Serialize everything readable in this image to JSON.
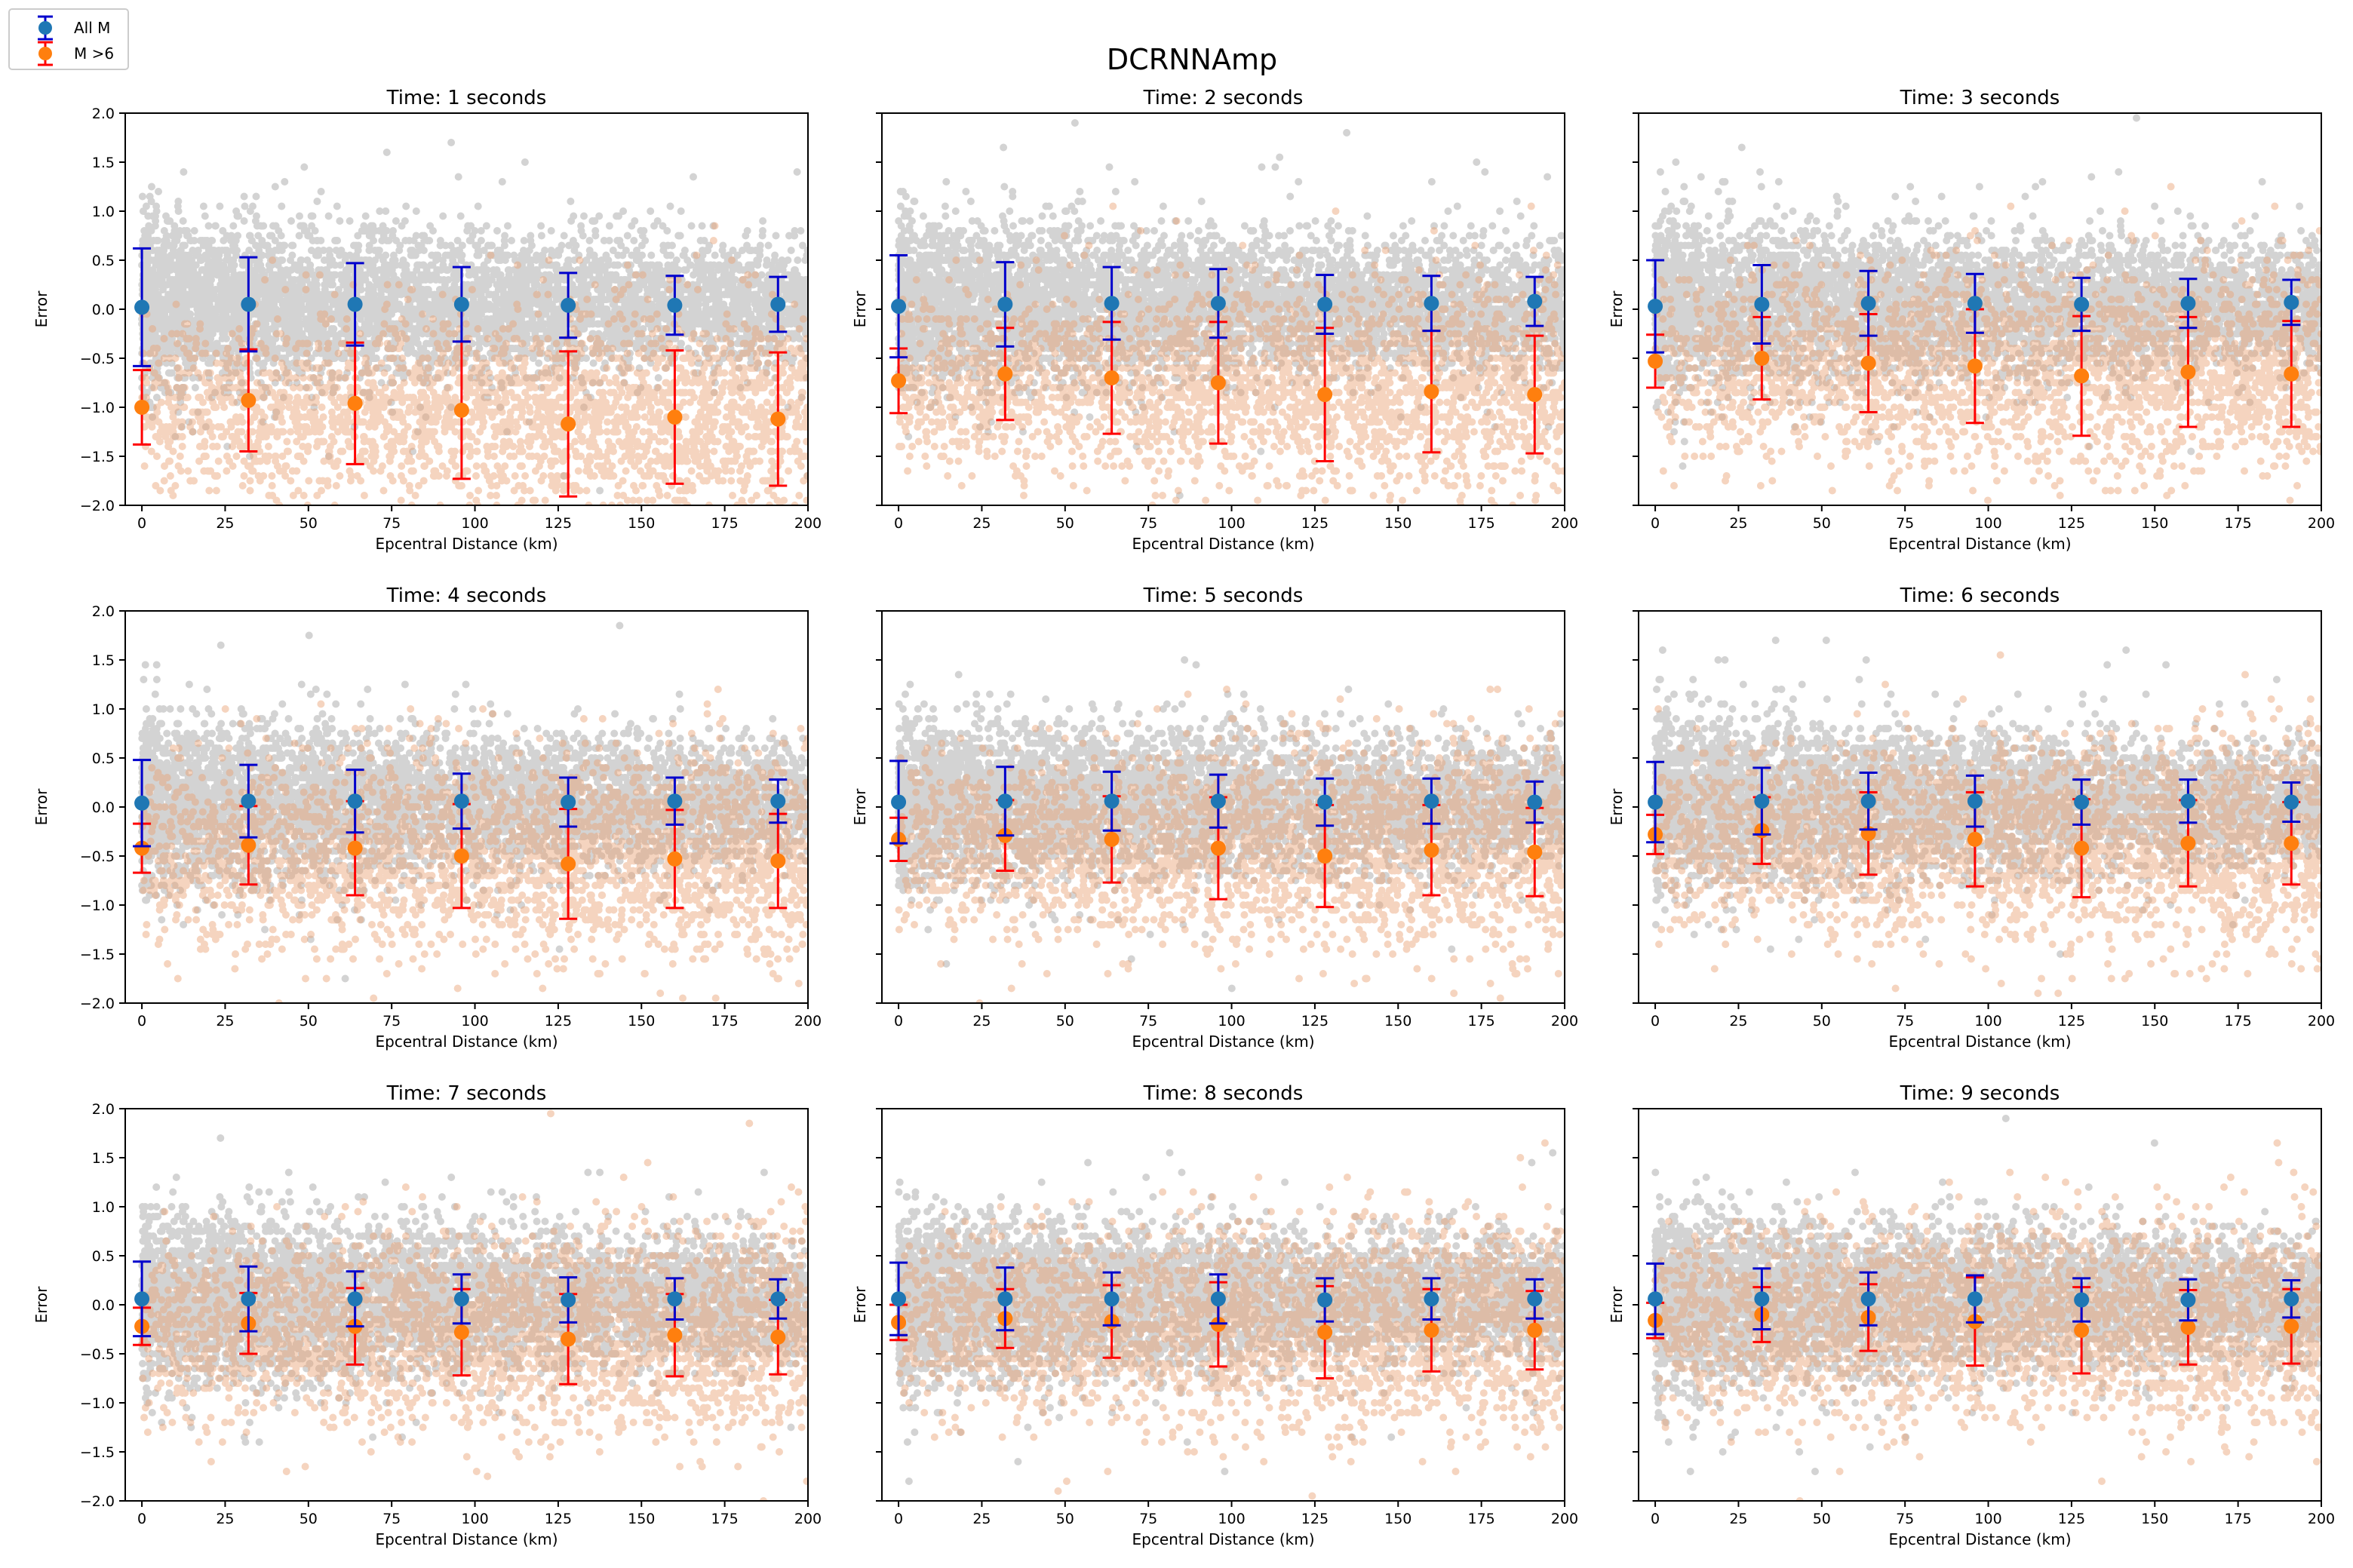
{
  "figure": {
    "title": "DCRNNAmp",
    "legend": {
      "placement": "top-left",
      "entries": [
        {
          "label": "All M",
          "color": "#1f77b4",
          "errorbar_color": "#0000cc"
        },
        {
          "label": "M >6",
          "color": "#ff7f0e",
          "errorbar_color": "#ff0000"
        }
      ]
    },
    "scatter_colors": {
      "all": "#808080",
      "large": "#e8a070"
    }
  },
  "chart_data": [
    {
      "type": "scatter",
      "title": "Time: 1 seconds",
      "xlabel": "Epcentral Distance (km)",
      "ylabel": "Error",
      "xlim": [
        -5,
        200
      ],
      "ylim": [
        -2.0,
        2.0
      ],
      "xticks": [
        "0",
        "25",
        "50",
        "75",
        "100",
        "125",
        "150",
        "175",
        "200"
      ],
      "yticks": [
        "−2.0",
        "−1.5",
        "−1.0",
        "−0.5",
        "0.0",
        "0.5",
        "1.0",
        "1.5",
        "2.0"
      ],
      "show_yticklabels": true,
      "grid": false,
      "series": [
        {
          "name": "All M",
          "x": [
            0,
            32,
            64,
            96,
            128,
            160,
            191
          ],
          "y": [
            0.02,
            0.05,
            0.05,
            0.05,
            0.04,
            0.04,
            0.05
          ],
          "err": [
            0.6,
            0.48,
            0.42,
            0.38,
            0.33,
            0.3,
            0.28
          ]
        },
        {
          "name": "M >6",
          "x": [
            0,
            32,
            64,
            96,
            128,
            160,
            191
          ],
          "y": [
            -1.0,
            -0.93,
            -0.96,
            -1.03,
            -1.17,
            -1.1,
            -1.12
          ],
          "err": [
            0.38,
            0.52,
            0.62,
            0.7,
            0.74,
            0.68,
            0.68
          ]
        }
      ]
    },
    {
      "type": "scatter",
      "title": "Time: 2 seconds",
      "xlabel": "Epcentral Distance (km)",
      "ylabel": "Error",
      "xlim": [
        -5,
        200
      ],
      "ylim": [
        -2.0,
        2.0
      ],
      "xticks": [
        "0",
        "25",
        "50",
        "75",
        "100",
        "125",
        "150",
        "175",
        "200"
      ],
      "yticks": [
        "−2.0",
        "−1.5",
        "−1.0",
        "−0.5",
        "0.0",
        "0.5",
        "1.0",
        "1.5",
        "2.0"
      ],
      "show_yticklabels": false,
      "grid": false,
      "series": [
        {
          "name": "All M",
          "x": [
            0,
            32,
            64,
            96,
            128,
            160,
            191
          ],
          "y": [
            0.03,
            0.05,
            0.06,
            0.06,
            0.05,
            0.06,
            0.08
          ],
          "err": [
            0.52,
            0.43,
            0.37,
            0.35,
            0.3,
            0.28,
            0.25
          ]
        },
        {
          "name": "M >6",
          "x": [
            0,
            32,
            64,
            96,
            128,
            160,
            191
          ],
          "y": [
            -0.73,
            -0.66,
            -0.7,
            -0.75,
            -0.87,
            -0.84,
            -0.87
          ],
          "err": [
            0.33,
            0.47,
            0.57,
            0.62,
            0.68,
            0.62,
            0.6
          ]
        }
      ]
    },
    {
      "type": "scatter",
      "title": "Time: 3 seconds",
      "xlabel": "Epcentral Distance (km)",
      "ylabel": "Error",
      "xlim": [
        -5,
        200
      ],
      "ylim": [
        -2.0,
        2.0
      ],
      "xticks": [
        "0",
        "25",
        "50",
        "75",
        "100",
        "125",
        "150",
        "175",
        "200"
      ],
      "yticks": [
        "−2.0",
        "−1.5",
        "−1.0",
        "−0.5",
        "0.0",
        "0.5",
        "1.0",
        "1.5",
        "2.0"
      ],
      "show_yticklabels": false,
      "grid": false,
      "series": [
        {
          "name": "All M",
          "x": [
            0,
            32,
            64,
            96,
            128,
            160,
            191
          ],
          "y": [
            0.03,
            0.05,
            0.06,
            0.06,
            0.05,
            0.06,
            0.07
          ],
          "err": [
            0.47,
            0.4,
            0.33,
            0.3,
            0.27,
            0.25,
            0.23
          ]
        },
        {
          "name": "M >6",
          "x": [
            0,
            32,
            64,
            96,
            128,
            160,
            191
          ],
          "y": [
            -0.53,
            -0.5,
            -0.55,
            -0.58,
            -0.68,
            -0.64,
            -0.66
          ],
          "err": [
            0.27,
            0.42,
            0.5,
            0.58,
            0.61,
            0.56,
            0.54
          ]
        }
      ]
    },
    {
      "type": "scatter",
      "title": "Time: 4 seconds",
      "xlabel": "Epcentral Distance (km)",
      "ylabel": "Error",
      "xlim": [
        -5,
        200
      ],
      "ylim": [
        -2.0,
        2.0
      ],
      "xticks": [
        "0",
        "25",
        "50",
        "75",
        "100",
        "125",
        "150",
        "175",
        "200"
      ],
      "yticks": [
        "−2.0",
        "−1.5",
        "−1.0",
        "−0.5",
        "0.0",
        "0.5",
        "1.0",
        "1.5",
        "2.0"
      ],
      "show_yticklabels": true,
      "grid": false,
      "series": [
        {
          "name": "All M",
          "x": [
            0,
            32,
            64,
            96,
            128,
            160,
            191
          ],
          "y": [
            0.04,
            0.06,
            0.06,
            0.06,
            0.05,
            0.06,
            0.06
          ],
          "err": [
            0.44,
            0.37,
            0.32,
            0.28,
            0.25,
            0.24,
            0.22
          ]
        },
        {
          "name": "M >6",
          "x": [
            0,
            32,
            64,
            96,
            128,
            160,
            191
          ],
          "y": [
            -0.42,
            -0.39,
            -0.42,
            -0.5,
            -0.58,
            -0.53,
            -0.55
          ],
          "err": [
            0.25,
            0.4,
            0.48,
            0.53,
            0.56,
            0.5,
            0.48
          ]
        }
      ]
    },
    {
      "type": "scatter",
      "title": "Time: 5 seconds",
      "xlabel": "Epcentral Distance (km)",
      "ylabel": "Error",
      "xlim": [
        -5,
        200
      ],
      "ylim": [
        -2.0,
        2.0
      ],
      "xticks": [
        "0",
        "25",
        "50",
        "75",
        "100",
        "125",
        "150",
        "175",
        "200"
      ],
      "yticks": [
        "−2.0",
        "−1.5",
        "−1.0",
        "−0.5",
        "0.0",
        "0.5",
        "1.0",
        "1.5",
        "2.0"
      ],
      "show_yticklabels": false,
      "grid": false,
      "series": [
        {
          "name": "All M",
          "x": [
            0,
            32,
            64,
            96,
            128,
            160,
            191
          ],
          "y": [
            0.05,
            0.06,
            0.06,
            0.06,
            0.05,
            0.06,
            0.05
          ],
          "err": [
            0.42,
            0.35,
            0.3,
            0.27,
            0.24,
            0.23,
            0.21
          ]
        },
        {
          "name": "M >6",
          "x": [
            0,
            32,
            64,
            96,
            128,
            160,
            191
          ],
          "y": [
            -0.33,
            -0.29,
            -0.33,
            -0.42,
            -0.5,
            -0.44,
            -0.46
          ],
          "err": [
            0.22,
            0.36,
            0.44,
            0.52,
            0.52,
            0.46,
            0.45
          ]
        }
      ]
    },
    {
      "type": "scatter",
      "title": "Time: 6 seconds",
      "xlabel": "Epcentral Distance (km)",
      "ylabel": "Error",
      "xlim": [
        -5,
        200
      ],
      "ylim": [
        -2.0,
        2.0
      ],
      "xticks": [
        "0",
        "25",
        "50",
        "75",
        "100",
        "125",
        "150",
        "175",
        "200"
      ],
      "yticks": [
        "−2.0",
        "−1.5",
        "−1.0",
        "−0.5",
        "0.0",
        "0.5",
        "1.0",
        "1.5",
        "2.0"
      ],
      "show_yticklabels": false,
      "grid": false,
      "series": [
        {
          "name": "All M",
          "x": [
            0,
            32,
            64,
            96,
            128,
            160,
            191
          ],
          "y": [
            0.05,
            0.06,
            0.06,
            0.06,
            0.05,
            0.06,
            0.05
          ],
          "err": [
            0.41,
            0.34,
            0.29,
            0.26,
            0.23,
            0.22,
            0.2
          ]
        },
        {
          "name": "M >6",
          "x": [
            0,
            32,
            64,
            96,
            128,
            160,
            191
          ],
          "y": [
            -0.28,
            -0.24,
            -0.27,
            -0.33,
            -0.42,
            -0.37,
            -0.37
          ],
          "err": [
            0.2,
            0.34,
            0.42,
            0.48,
            0.5,
            0.44,
            0.42
          ]
        }
      ]
    },
    {
      "type": "scatter",
      "title": "Time: 7 seconds",
      "xlabel": "Epcentral Distance (km)",
      "ylabel": "Error",
      "xlim": [
        -5,
        200
      ],
      "ylim": [
        -2.0,
        2.0
      ],
      "xticks": [
        "0",
        "25",
        "50",
        "75",
        "100",
        "125",
        "150",
        "175",
        "200"
      ],
      "yticks": [
        "−2.0",
        "−1.5",
        "−1.0",
        "−0.5",
        "0.0",
        "0.5",
        "1.0",
        "1.5",
        "2.0"
      ],
      "show_yticklabels": true,
      "grid": false,
      "series": [
        {
          "name": "All M",
          "x": [
            0,
            32,
            64,
            96,
            128,
            160,
            191
          ],
          "y": [
            0.06,
            0.06,
            0.06,
            0.06,
            0.05,
            0.06,
            0.06
          ],
          "err": [
            0.38,
            0.33,
            0.28,
            0.25,
            0.23,
            0.21,
            0.2
          ]
        },
        {
          "name": "M >6",
          "x": [
            0,
            32,
            64,
            96,
            128,
            160,
            191
          ],
          "y": [
            -0.22,
            -0.19,
            -0.22,
            -0.28,
            -0.35,
            -0.31,
            -0.33
          ],
          "err": [
            0.19,
            0.31,
            0.39,
            0.44,
            0.46,
            0.42,
            0.38
          ]
        }
      ]
    },
    {
      "type": "scatter",
      "title": "Time: 8 seconds",
      "xlabel": "Epcentral Distance (km)",
      "ylabel": "Error",
      "xlim": [
        -5,
        200
      ],
      "ylim": [
        -2.0,
        2.0
      ],
      "xticks": [
        "0",
        "25",
        "50",
        "75",
        "100",
        "125",
        "150",
        "175",
        "200"
      ],
      "yticks": [
        "−2.0",
        "−1.5",
        "−1.0",
        "−0.5",
        "0.0",
        "0.5",
        "1.0",
        "1.5",
        "2.0"
      ],
      "show_yticklabels": false,
      "grid": false,
      "series": [
        {
          "name": "All M",
          "x": [
            0,
            32,
            64,
            96,
            128,
            160,
            191
          ],
          "y": [
            0.06,
            0.06,
            0.06,
            0.06,
            0.05,
            0.06,
            0.06
          ],
          "err": [
            0.37,
            0.32,
            0.27,
            0.25,
            0.22,
            0.21,
            0.2
          ]
        },
        {
          "name": "M >6",
          "x": [
            0,
            32,
            64,
            96,
            128,
            160,
            191
          ],
          "y": [
            -0.18,
            -0.14,
            -0.17,
            -0.2,
            -0.28,
            -0.26,
            -0.26
          ],
          "err": [
            0.18,
            0.3,
            0.37,
            0.43,
            0.47,
            0.42,
            0.4
          ]
        }
      ]
    },
    {
      "type": "scatter",
      "title": "Time: 9 seconds",
      "xlabel": "Epcentral Distance (km)",
      "ylabel": "Error",
      "xlim": [
        -5,
        200
      ],
      "ylim": [
        -2.0,
        2.0
      ],
      "xticks": [
        "0",
        "25",
        "50",
        "75",
        "100",
        "125",
        "150",
        "175",
        "200"
      ],
      "yticks": [
        "−2.0",
        "−1.5",
        "−1.0",
        "−0.5",
        "0.0",
        "0.5",
        "1.0",
        "1.5",
        "2.0"
      ],
      "show_yticklabels": false,
      "grid": false,
      "series": [
        {
          "name": "All M",
          "x": [
            0,
            32,
            64,
            96,
            128,
            160,
            191
          ],
          "y": [
            0.06,
            0.06,
            0.06,
            0.06,
            0.05,
            0.05,
            0.06
          ],
          "err": [
            0.36,
            0.31,
            0.27,
            0.24,
            0.22,
            0.21,
            0.19
          ]
        },
        {
          "name": "M >6",
          "x": [
            0,
            32,
            64,
            96,
            128,
            160,
            191
          ],
          "y": [
            -0.16,
            -0.1,
            -0.13,
            -0.17,
            -0.26,
            -0.23,
            -0.22
          ],
          "err": [
            0.18,
            0.28,
            0.34,
            0.45,
            0.44,
            0.38,
            0.38
          ]
        }
      ]
    }
  ]
}
